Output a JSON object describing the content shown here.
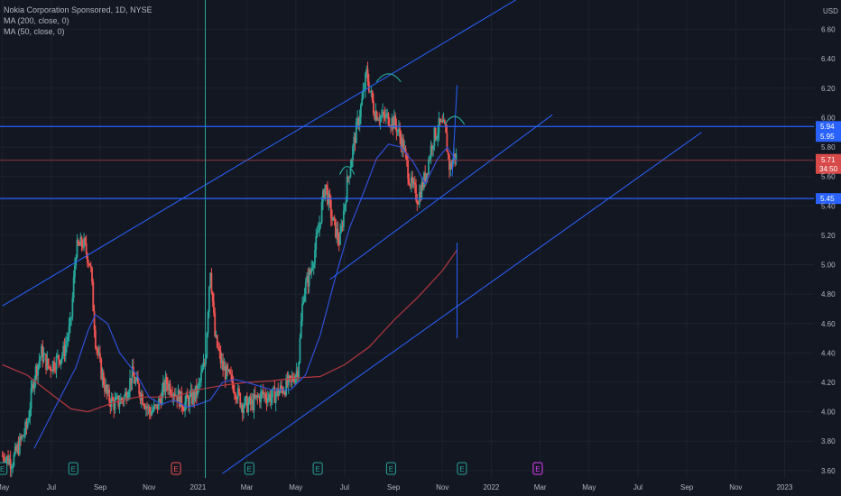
{
  "legend": {
    "symbol_line": "Nokia Corporation Sponsored, 1D, NYSE",
    "ma200_line": "MA (200, close, 0)",
    "ma50_line": "MA (50, close, 0)"
  },
  "colors": {
    "background": "#131722",
    "grid": "#1e222d",
    "up": "#26a69a",
    "down": "#ef5350",
    "trend": "#2962ff",
    "ma200": "#b2383f",
    "ma50": "#2f4fd6",
    "hline": "#2962ff",
    "price_line": "#d84a4a",
    "earnings": "#26a69a",
    "dividend": "#e040fb"
  },
  "chart_data": {
    "type": "candlestick",
    "price_unit": "USD",
    "y_ticks": [
      "6.60",
      "6.40",
      "6.20",
      "6.00",
      "5.80",
      "5.60",
      "5.40",
      "5.20",
      "5.00",
      "4.80",
      "4.60",
      "4.40",
      "4.20",
      "4.00",
      "3.80",
      "3.60"
    ],
    "x_ticks": [
      "May",
      "Jul",
      "Sep",
      "Nov",
      "2021",
      "Mar",
      "May",
      "Jul",
      "Sep",
      "Nov",
      "2022",
      "Mar",
      "May",
      "Jul",
      "Sep",
      "Nov",
      "2023"
    ],
    "x_tick_months": [
      0,
      2,
      4,
      6,
      8,
      10,
      12,
      14,
      16,
      18,
      20,
      22,
      24,
      26,
      28,
      30,
      32
    ],
    "ylim": [
      3.55,
      6.8
    ],
    "xlim_months": [
      -0.1,
      33.2
    ],
    "price_path": [
      [
        0.0,
        3.7
      ],
      [
        0.4,
        3.66
      ],
      [
        0.7,
        3.78
      ],
      [
        1.0,
        3.9
      ],
      [
        1.3,
        4.25
      ],
      [
        1.6,
        4.4
      ],
      [
        1.9,
        4.3
      ],
      [
        2.2,
        4.35
      ],
      [
        2.5,
        4.4
      ],
      [
        2.8,
        4.6
      ],
      [
        3.0,
        5.1
      ],
      [
        3.3,
        5.15
      ],
      [
        3.6,
        5.0
      ],
      [
        3.8,
        4.5
      ],
      [
        4.0,
        4.3
      ],
      [
        4.3,
        4.1
      ],
      [
        4.6,
        4.05
      ],
      [
        5.0,
        4.1
      ],
      [
        5.3,
        4.25
      ],
      [
        5.6,
        4.15
      ],
      [
        6.0,
        4.0
      ],
      [
        6.3,
        4.02
      ],
      [
        6.7,
        4.2
      ],
      [
        7.0,
        4.15
      ],
      [
        7.4,
        4.05
      ],
      [
        7.8,
        4.1
      ],
      [
        8.0,
        4.15
      ],
      [
        8.3,
        4.35
      ],
      [
        8.5,
        5.0
      ],
      [
        8.7,
        4.5
      ],
      [
        9.0,
        4.3
      ],
      [
        9.4,
        4.2
      ],
      [
        9.8,
        4.05
      ],
      [
        10.2,
        4.05
      ],
      [
        10.6,
        4.12
      ],
      [
        11.0,
        4.1
      ],
      [
        11.4,
        4.15
      ],
      [
        11.8,
        4.2
      ],
      [
        12.1,
        4.3
      ],
      [
        12.3,
        4.8
      ],
      [
        12.6,
        4.95
      ],
      [
        12.9,
        5.2
      ],
      [
        13.2,
        5.55
      ],
      [
        13.5,
        5.3
      ],
      [
        13.8,
        5.15
      ],
      [
        14.1,
        5.55
      ],
      [
        14.4,
        5.85
      ],
      [
        14.7,
        6.1
      ],
      [
        14.9,
        6.3
      ],
      [
        15.2,
        6.05
      ],
      [
        15.5,
        6.0
      ],
      [
        15.8,
        6.0
      ],
      [
        16.1,
        5.95
      ],
      [
        16.4,
        5.8
      ],
      [
        16.7,
        5.55
      ],
      [
        17.0,
        5.45
      ],
      [
        17.3,
        5.6
      ],
      [
        17.6,
        5.85
      ],
      [
        17.9,
        5.95
      ],
      [
        18.1,
        5.92
      ],
      [
        18.3,
        5.65
      ],
      [
        18.5,
        5.75
      ],
      [
        18.6,
        5.72
      ]
    ],
    "ma200": [
      [
        0.0,
        4.32
      ],
      [
        1.0,
        4.25
      ],
      [
        2.0,
        4.12
      ],
      [
        2.8,
        4.02
      ],
      [
        3.5,
        4.0
      ],
      [
        4.5,
        4.06
      ],
      [
        5.5,
        4.1
      ],
      [
        7.0,
        4.1
      ],
      [
        8.0,
        4.15
      ],
      [
        9.0,
        4.18
      ],
      [
        10.0,
        4.2
      ],
      [
        11.0,
        4.21
      ],
      [
        12.0,
        4.23
      ],
      [
        13.0,
        4.24
      ],
      [
        14.0,
        4.32
      ],
      [
        15.0,
        4.44
      ],
      [
        16.0,
        4.62
      ],
      [
        17.0,
        4.78
      ],
      [
        18.0,
        4.96
      ],
      [
        18.6,
        5.1
      ]
    ],
    "ma50": [
      [
        1.3,
        3.75
      ],
      [
        2.0,
        3.98
      ],
      [
        3.0,
        4.3
      ],
      [
        3.5,
        4.55
      ],
      [
        3.8,
        4.66
      ],
      [
        4.3,
        4.6
      ],
      [
        4.8,
        4.4
      ],
      [
        5.5,
        4.25
      ],
      [
        6.0,
        4.1
      ],
      [
        6.5,
        4.05
      ],
      [
        7.0,
        4.08
      ],
      [
        7.6,
        4.03
      ],
      [
        8.0,
        4.05
      ],
      [
        8.5,
        4.08
      ],
      [
        9.0,
        4.2
      ],
      [
        9.5,
        4.22
      ],
      [
        10.0,
        4.2
      ],
      [
        11.0,
        4.15
      ],
      [
        11.8,
        4.15
      ],
      [
        12.4,
        4.25
      ],
      [
        13.0,
        4.52
      ],
      [
        13.6,
        4.9
      ],
      [
        14.2,
        5.25
      ],
      [
        14.8,
        5.5
      ],
      [
        15.3,
        5.72
      ],
      [
        15.8,
        5.82
      ],
      [
        16.3,
        5.8
      ],
      [
        16.8,
        5.7
      ],
      [
        17.3,
        5.55
      ],
      [
        17.8,
        5.72
      ],
      [
        18.2,
        5.8
      ],
      [
        18.6,
        5.7
      ]
    ],
    "hlines": [
      {
        "price": 5.94,
        "label": "5.94"
      },
      {
        "price": 5.45,
        "label": "5.45"
      }
    ],
    "current_price": {
      "price": 5.71,
      "label": "5.71",
      "countdown": "34:50"
    },
    "side_labels": [
      {
        "price": 5.94,
        "label": "5.95"
      }
    ],
    "trend_lines": [
      {
        "from": [
          0.0,
          4.72
        ],
        "to": [
          21.0,
          6.8
        ]
      },
      {
        "from": [
          13.4,
          4.9
        ],
        "to": [
          22.5,
          6.02
        ]
      },
      {
        "from": [
          9.0,
          3.58
        ],
        "to": [
          28.6,
          5.9
        ]
      },
      {
        "from": [
          18.4,
          5.6
        ],
        "to": [
          18.6,
          6.22
        ]
      }
    ],
    "vlines": [
      {
        "month": 8.3,
        "color": "#26a69a"
      },
      {
        "month": 18.6,
        "color": "#2962ff",
        "from_price": 5.15,
        "to_price": 4.5
      }
    ],
    "arcs": [
      {
        "center_month": 14.1,
        "price": 5.65,
        "width": 0.6
      },
      {
        "center_month": 15.8,
        "price": 6.28,
        "width": 1.0
      },
      {
        "center_month": 18.5,
        "price": 5.99,
        "width": 0.8
      }
    ],
    "events": [
      {
        "month": 0.0,
        "label": "E",
        "kind": "earnings"
      },
      {
        "month": 2.9,
        "label": "E",
        "kind": "earnings"
      },
      {
        "month": 7.1,
        "label": "E",
        "kind": "earnings-red"
      },
      {
        "month": 10.1,
        "label": "E",
        "kind": "earnings"
      },
      {
        "month": 12.9,
        "label": "E",
        "kind": "earnings"
      },
      {
        "month": 15.9,
        "label": "E",
        "kind": "earnings"
      },
      {
        "month": 18.8,
        "label": "E",
        "kind": "earnings"
      },
      {
        "month": 21.9,
        "label": "E",
        "kind": "earnings-purple"
      }
    ]
  }
}
